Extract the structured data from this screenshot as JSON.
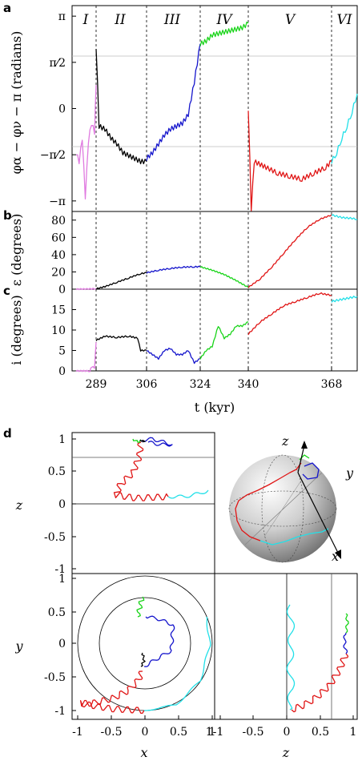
{
  "colors": {
    "I": "#e07ae0",
    "II": "#000000",
    "III": "#1515cc",
    "IV": "#19d419",
    "V": "#e01515",
    "VI": "#22e0e8",
    "grid": "#bbbbbb"
  },
  "panels": {
    "a": {
      "letter": "a",
      "ylabel": "φα − φν − π (radians)"
    },
    "b": {
      "letter": "b",
      "ylabel": "ε (degrees)"
    },
    "c": {
      "letter": "c",
      "ylabel": "i (degrees)"
    },
    "d": {
      "letter": "d"
    }
  },
  "regimes": [
    "I",
    "II",
    "III",
    "IV",
    "V",
    "VI"
  ],
  "time_axis": {
    "label": "t (kyr)",
    "ticks": [
      "289",
      "306",
      "324",
      "340",
      "368"
    ]
  },
  "chart_data": [
    {
      "id": "a",
      "type": "line",
      "ylabel": "φα − φν − π (radians)",
      "xlabel": "t (kyr)",
      "ylim": [
        -3.5,
        3.5
      ],
      "ytick_labels": [
        "π",
        "π/2",
        "0",
        "−π/2",
        "−π"
      ],
      "regime_boundaries": [
        289,
        306,
        324,
        340,
        368
      ],
      "series": [
        {
          "name": "I",
          "x": [
            276,
            278,
            280,
            282,
            284,
            286,
            288,
            289
          ],
          "y": [
            -1.5,
            -1.8,
            -1.0,
            -3.0,
            -1.1,
            -0.5,
            -0.8,
            0.8
          ]
        },
        {
          "name": "II",
          "x": [
            289,
            290,
            292,
            294,
            296,
            298,
            300,
            302,
            304,
            306
          ],
          "y": [
            2.1,
            -0.6,
            -0.7,
            -1.0,
            -1.2,
            -1.5,
            -1.6,
            -1.7,
            -1.8,
            -1.8
          ]
        },
        {
          "name": "III",
          "x": [
            306,
            308,
            310,
            312,
            314,
            316,
            318,
            320,
            322,
            324
          ],
          "y": [
            -1.7,
            -1.5,
            -1.2,
            -0.9,
            -0.7,
            -0.6,
            -0.5,
            -0.2,
            0.9,
            2.2
          ]
        },
        {
          "name": "IV",
          "x": [
            324,
            326,
            328,
            330,
            332,
            334,
            336,
            338,
            340
          ],
          "y": [
            2.2,
            2.3,
            2.5,
            2.55,
            2.6,
            2.65,
            2.7,
            2.75,
            2.9
          ]
        },
        {
          "name": "V",
          "x": [
            340,
            341,
            342,
            344,
            346,
            350,
            354,
            358,
            362,
            366,
            368
          ],
          "y": [
            0.0,
            -3.4,
            -1.8,
            -1.9,
            -2.0,
            -2.2,
            -2.3,
            -2.4,
            -2.2,
            -2.0,
            -1.8
          ]
        },
        {
          "name": "VI",
          "x": [
            368,
            370,
            372,
            374,
            376,
            378
          ],
          "y": [
            -1.8,
            -1.5,
            -1.0,
            -0.6,
            -0.1,
            0.5
          ]
        }
      ]
    },
    {
      "id": "b",
      "type": "line",
      "ylabel": "ε (degrees)",
      "xlabel": "t (kyr)",
      "ylim": [
        0,
        90
      ],
      "yticks": [
        0,
        20,
        40,
        60,
        80
      ],
      "series": [
        {
          "name": "I",
          "x": [
            276,
            289
          ],
          "y": [
            0,
            0.5
          ]
        },
        {
          "name": "II",
          "x": [
            289,
            292,
            296,
            300,
            304,
            306
          ],
          "y": [
            0.5,
            3,
            8,
            13,
            18,
            19
          ]
        },
        {
          "name": "III",
          "x": [
            306,
            310,
            314,
            318,
            322,
            324
          ],
          "y": [
            19,
            22,
            24,
            25.5,
            26,
            26
          ]
        },
        {
          "name": "IV",
          "x": [
            324,
            328,
            332,
            336,
            340
          ],
          "y": [
            26,
            22,
            17,
            10,
            2
          ]
        },
        {
          "name": "V",
          "x": [
            340,
            344,
            348,
            352,
            356,
            360,
            364,
            368
          ],
          "y": [
            2,
            12,
            26,
            42,
            58,
            72,
            81,
            86
          ]
        },
        {
          "name": "VI",
          "x": [
            368,
            372,
            376,
            378
          ],
          "y": [
            86,
            83,
            82,
            81
          ]
        }
      ]
    },
    {
      "id": "c",
      "type": "line",
      "ylabel": "i (degrees)",
      "xlabel": "t (kyr)",
      "ylim": [
        0,
        20
      ],
      "yticks": [
        0,
        5,
        10,
        15
      ],
      "series": [
        {
          "name": "I",
          "x": [
            276,
            285,
            286,
            288,
            289
          ],
          "y": [
            0,
            0,
            1,
            0.8,
            7
          ]
        },
        {
          "name": "II",
          "x": [
            289,
            292,
            296,
            300,
            303,
            304,
            306
          ],
          "y": [
            7.5,
            8.5,
            8.2,
            8.5,
            8.0,
            5,
            5
          ]
        },
        {
          "name": "III",
          "x": [
            306,
            308,
            310,
            312,
            314,
            316,
            318,
            320,
            322,
            324
          ],
          "y": [
            5,
            4,
            3,
            5,
            5.5,
            4,
            4,
            5,
            2,
            3
          ]
        },
        {
          "name": "IV",
          "x": [
            324,
            326,
            328,
            330,
            332,
            334,
            336,
            338,
            340
          ],
          "y": [
            3,
            5,
            6,
            11,
            8,
            9,
            11,
            11,
            12
          ]
        },
        {
          "name": "V",
          "x": [
            340,
            344,
            348,
            352,
            356,
            360,
            364,
            368
          ],
          "y": [
            9,
            12,
            14,
            16,
            17,
            18,
            19,
            18.5
          ]
        },
        {
          "name": "VI",
          "x": [
            368,
            372,
            376,
            378
          ],
          "y": [
            17,
            17.5,
            18,
            18.2
          ]
        }
      ]
    },
    {
      "id": "d",
      "type": "line",
      "description_axes": [
        "x-z",
        "sphere",
        "x-y",
        "z-y"
      ],
      "xy_ticks": [
        "-1",
        "-0.5",
        "0",
        "0.5",
        "1"
      ],
      "zticks_top": [
        "1",
        "0.5",
        "0",
        "-0.5",
        "-1"
      ],
      "zticks_bottom": [
        "-1",
        "-0.5",
        "0",
        "0.5",
        "1"
      ],
      "axis_labels": {
        "x": "x",
        "y": "y",
        "z": "z"
      }
    }
  ]
}
